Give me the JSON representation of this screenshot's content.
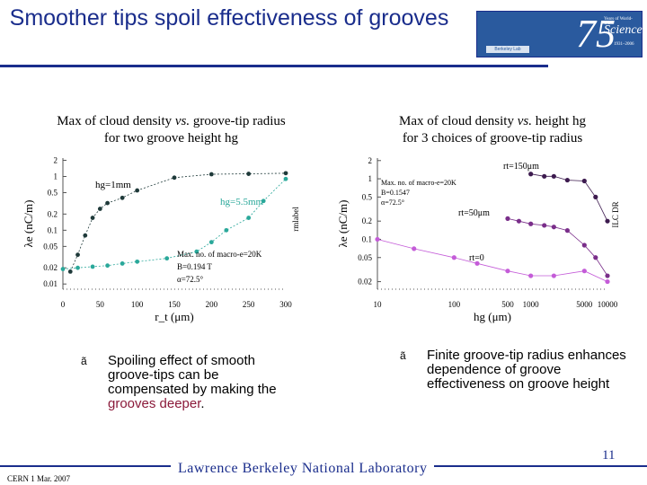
{
  "title": "Smoother tips spoil effectiveness of grooves",
  "logo": {
    "label": "Berkeley Lab",
    "number": "75",
    "line1": "Years of World-Class",
    "line2": "Science",
    "line3": "1931–2006"
  },
  "left_caption": {
    "line1_pre": "Max of cloud density ",
    "line1_vs": "vs.",
    "line1_post": " groove-tip radius",
    "line2": "for two groove height hg"
  },
  "right_caption": {
    "line1_pre": "Max of cloud density ",
    "line1_vs": "vs.",
    "line1_post": " height hg",
    "line2": "for 3 choices of groove-tip radius"
  },
  "bullet_left": {
    "marker": "ã",
    "text_pre": "Spoiling effect of smooth groove-tips can be compensated by making the ",
    "highlight": "grooves deeper",
    "text_post": "."
  },
  "bullet_right": {
    "marker": "ã",
    "text": "Finite groove-tip radius enhances dependence of groove effectiveness on groove height"
  },
  "footer": {
    "left": "CERN  1 Mar. 2007",
    "lab": "Lawrence Berkeley National Laboratory",
    "page": "11"
  },
  "colors": {
    "title": "#1a2d8c",
    "dark_series": "#1f3a3a",
    "teal_series": "#2aa89a",
    "purple_dark": "#3d1b4f",
    "purple_mid": "#7a2e8a",
    "purple_light": "#c45cd8",
    "highlight": "#8b1a3a"
  },
  "chart_data": [
    {
      "type": "line",
      "xlabel": "r_t (μm)",
      "ylabel": "λe (nC/m)",
      "right_label": "rmlabel",
      "x_ticks": [
        "0",
        "50",
        "100",
        "150",
        "200",
        "250",
        "300"
      ],
      "y_ticks": [
        "2",
        "1",
        "0.5",
        "0.2",
        "0.1",
        "0.05",
        "0.02",
        "0.01"
      ],
      "y_scale": "log",
      "series": [
        {
          "name": "hg=1mm",
          "x": [
            10,
            20,
            30,
            40,
            50,
            60,
            80,
            100,
            150,
            200,
            250,
            300
          ],
          "y": [
            0.017,
            0.035,
            0.08,
            0.17,
            0.25,
            0.32,
            0.4,
            0.55,
            0.95,
            1.1,
            1.12,
            1.15
          ]
        },
        {
          "name": "hg=5.5mm",
          "x": [
            0,
            20,
            40,
            60,
            80,
            100,
            140,
            180,
            200,
            220,
            250,
            270,
            300
          ],
          "y": [
            0.019,
            0.02,
            0.021,
            0.022,
            0.024,
            0.026,
            0.03,
            0.04,
            0.06,
            0.1,
            0.17,
            0.35,
            0.9
          ]
        }
      ],
      "annotations": [
        "Max. no. of macro-e=20K",
        "B=0.194 T",
        "α=72.5°"
      ]
    },
    {
      "type": "line",
      "xlabel": "hg (μm)",
      "ylabel": "λe (nC/m)",
      "right_label": "ILC DR",
      "x_ticks": [
        "10",
        "100",
        "500",
        "1000",
        "5000",
        "10000"
      ],
      "x_scale": "log",
      "y_ticks": [
        "2",
        "1",
        "0.5",
        "0.2",
        "0.1",
        "0.05",
        "0.02"
      ],
      "y_scale": "log",
      "series": [
        {
          "name": "rt=150μm",
          "x": [
            1000,
            1500,
            2000,
            3000,
            5000,
            7000,
            10000
          ],
          "y": [
            1.2,
            1.1,
            1.1,
            0.95,
            0.92,
            0.5,
            0.2
          ]
        },
        {
          "name": "rt=50μm",
          "x": [
            500,
            700,
            1000,
            1500,
            2000,
            3000,
            5000,
            7000,
            10000
          ],
          "y": [
            0.22,
            0.2,
            0.18,
            0.17,
            0.16,
            0.14,
            0.08,
            0.05,
            0.025
          ]
        },
        {
          "name": "rt=0",
          "x": [
            10,
            30,
            100,
            200,
            500,
            1000,
            2000,
            5000,
            10000
          ],
          "y": [
            0.1,
            0.07,
            0.05,
            0.04,
            0.03,
            0.025,
            0.025,
            0.03,
            0.02
          ]
        }
      ],
      "annotations": [
        "Max. no. of macro-e=20K",
        "B=0.1547",
        "α=72.5°"
      ]
    }
  ]
}
